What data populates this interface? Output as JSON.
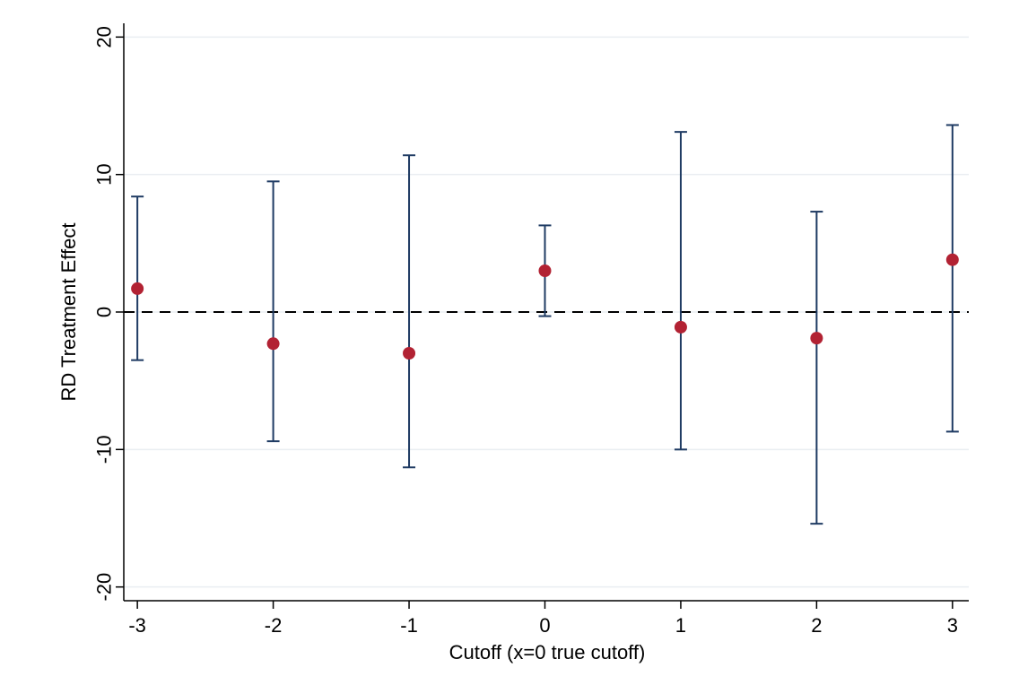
{
  "chart_data": {
    "type": "scatter",
    "title": "",
    "xlabel": "Cutoff (x=0 true cutoff)",
    "ylabel": "RD Treatment Effect",
    "xlim": [
      -3.1,
      3.12
    ],
    "ylim": [
      -21,
      21
    ],
    "x_ticks": [
      -3,
      -2,
      -1,
      0,
      1,
      2,
      3
    ],
    "x_tick_labels": [
      "-3",
      "-2",
      "-1",
      "0",
      "1",
      "2",
      "3"
    ],
    "y_ticks": [
      -20,
      -10,
      0,
      10,
      20
    ],
    "y_tick_labels": [
      "-20",
      "-10",
      "0",
      "10",
      "20"
    ],
    "grid": "horizontal",
    "reference_line": {
      "y": 0,
      "style": "dashed",
      "color": "#000000"
    },
    "series": [
      {
        "x": [
          -3,
          -2,
          -1,
          0,
          1,
          2,
          3
        ],
        "y": [
          1.7,
          -2.3,
          -3.0,
          3.0,
          -1.1,
          -1.9,
          3.8
        ],
        "ci_low": [
          -3.5,
          -9.4,
          -11.3,
          -0.3,
          -10.0,
          -15.4,
          -8.7
        ],
        "ci_high": [
          8.4,
          9.5,
          11.4,
          6.3,
          13.1,
          7.3,
          13.6
        ],
        "point_color": "#b22233",
        "ci_color": "#1f3b63"
      }
    ]
  }
}
